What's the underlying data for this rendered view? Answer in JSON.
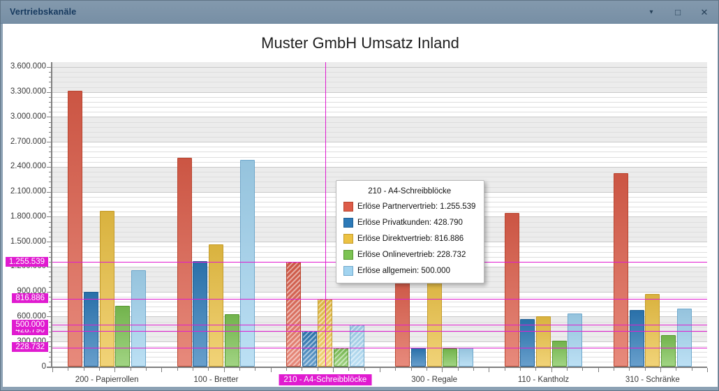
{
  "window": {
    "title": "Vertriebskanäle",
    "controls": {
      "pin": "▾",
      "maximize": "□",
      "close": "✕"
    }
  },
  "chart_data": {
    "type": "bar",
    "title": "Muster GmbH Umsatz Inland",
    "categories": [
      "200 - Papierrollen",
      "100 - Bretter",
      "210 - A4-Schreibblöcke",
      "300 - Regale",
      "110 - Kantholz",
      "310 - Schränke"
    ],
    "series": [
      {
        "name": "Erlöse Partnervertrieb",
        "color": "#dd5c49",
        "border": "#b8452f",
        "values": [
          3310000,
          2510000,
          1255539,
          1100000,
          1845000,
          2325000
        ]
      },
      {
        "name": "Erlöse Privatkunden",
        "color": "#2d7ab8",
        "border": "#1f5f94",
        "values": [
          900000,
          1270000,
          428790,
          225000,
          570000,
          680000
        ]
      },
      {
        "name": "Erlöse Direktvertrieb",
        "color": "#ecc243",
        "border": "#c49b2a",
        "values": [
          1870000,
          1465000,
          816886,
          1120000,
          600000,
          870000
        ]
      },
      {
        "name": "Erlöse Onlinevertrieb",
        "color": "#7cc353",
        "border": "#55962f",
        "values": [
          730000,
          630000,
          228732,
          215000,
          310000,
          380000
        ]
      },
      {
        "name": "Erlöse allgemein",
        "color": "#a2d4f0",
        "border": "#6fa8cc",
        "values": [
          1160000,
          2480000,
          500000,
          230000,
          640000,
          695000
        ]
      }
    ],
    "ylim": [
      0,
      3600000
    ],
    "y_major_step": 300000,
    "y_minor_step": 60000,
    "grid": true,
    "legend_position": "none",
    "highlighted_category_index": 2,
    "crosshair_color": "#e01bd0",
    "crosshair_y_values": [
      1255539,
      816886,
      500000,
      428790,
      228732
    ]
  },
  "tooltip": {
    "title": "210 - A4-Schreibblöcke",
    "rows": [
      {
        "label": "Erlöse Partnervertrieb",
        "value": 1255539
      },
      {
        "label": "Erlöse Privatkunden",
        "value": 428790
      },
      {
        "label": "Erlöse Direktvertrieb",
        "value": 816886
      },
      {
        "label": "Erlöse Onlinevertrieb",
        "value": 228732
      },
      {
        "label": "Erlöse allgemein",
        "value": 500000
      }
    ]
  }
}
